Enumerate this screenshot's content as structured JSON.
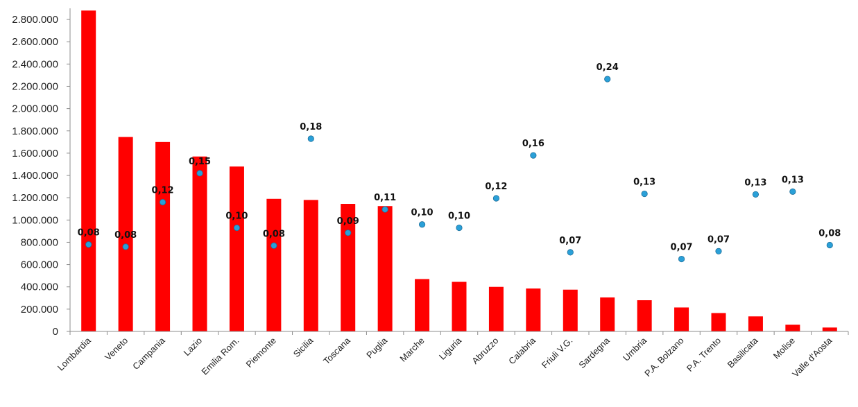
{
  "chart_data": {
    "type": "bar",
    "title": "",
    "xlabel": "",
    "ylabel": "",
    "ylim": [
      0,
      2900000
    ],
    "y_ticks": [
      0,
      200000,
      400000,
      600000,
      800000,
      1000000,
      1200000,
      1400000,
      1600000,
      1800000,
      2000000,
      2200000,
      2400000,
      2600000,
      2800000
    ],
    "y_tick_labels": [
      "0",
      "200.000",
      "400.000",
      "600.000",
      "800.000",
      "1.000.000",
      "1.200.000",
      "1.400.000",
      "1.600.000",
      "1.800.000",
      "2.000.000",
      "2.200.000",
      "2.400.000",
      "2.600.000",
      "2.800.000"
    ],
    "grid": false,
    "categories": [
      "Lombardia",
      "Veneto",
      "Campania",
      "Lazio",
      "Emilia Rom.",
      "Piemonte",
      "Sicilia",
      "Toscana",
      "Puglia",
      "Marche",
      "Liguria",
      "Abruzzo",
      "Calabria",
      "Friuli V.G.",
      "Sardegna",
      "Umbria",
      "P.A. Bolzano",
      "P.A. Trento",
      "Basilicata",
      "Molise",
      "Valle d'Aosta"
    ],
    "bar_values": [
      2880000,
      1745000,
      1700000,
      1570000,
      1480000,
      1190000,
      1180000,
      1145000,
      1125000,
      470000,
      445000,
      400000,
      385000,
      375000,
      305000,
      280000,
      215000,
      165000,
      135000,
      60000,
      35000
    ],
    "point_labels": [
      "0,08",
      "0,08",
      "0,12",
      "0,15",
      "0,10",
      "0,08",
      "0,18",
      "0,09",
      "0,11",
      "0,10",
      "0,10",
      "0,12",
      "0,16",
      "0,07",
      "0,24",
      "0,13",
      "0,07",
      "0,07",
      "0,13",
      "0,13",
      "0,08"
    ],
    "point_values": [
      0.08,
      0.08,
      0.12,
      0.15,
      0.1,
      0.08,
      0.18,
      0.09,
      0.11,
      0.1,
      0.1,
      0.12,
      0.16,
      0.07,
      0.24,
      0.13,
      0.07,
      0.07,
      0.13,
      0.13,
      0.08
    ],
    "point_positions_on_left_axis": [
      780000,
      760000,
      1160000,
      1420000,
      930000,
      770000,
      1730000,
      885000,
      1095000,
      960000,
      930000,
      1195000,
      1580000,
      710000,
      2265000,
      1235000,
      650000,
      720000,
      1230000,
      1255000,
      775000
    ],
    "colors": {
      "bar": "#ff0000",
      "point": "#2aa0d8",
      "point_edge": "#1f6f9a",
      "axis": "#8c8c8c"
    }
  }
}
